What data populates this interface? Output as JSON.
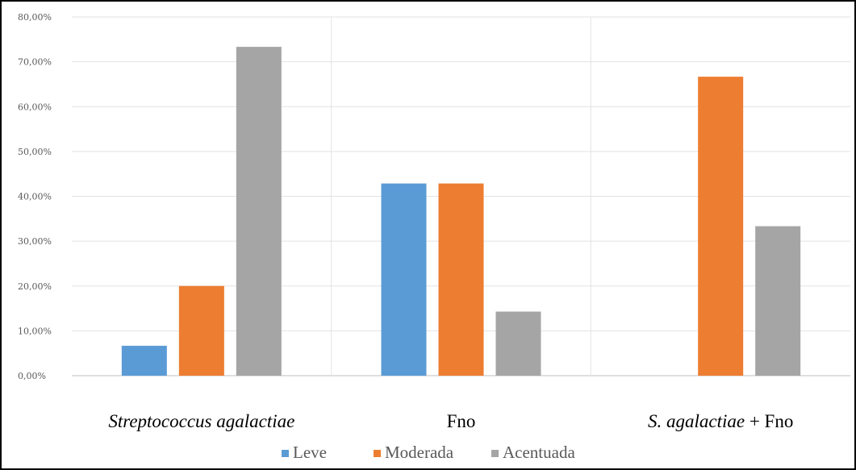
{
  "chart_data": {
    "type": "bar",
    "categories": [
      "Streptococcus agalactiae",
      "Fno",
      "S. agalactiae + Fno"
    ],
    "category_labels": [
      [
        {
          "text": "Streptococcus agalactiae",
          "italic": true
        }
      ],
      [
        {
          "text": "Fno",
          "italic": false
        }
      ],
      [
        {
          "text": "S. agalactiae",
          "italic": true
        },
        {
          "text": " + Fno",
          "italic": false
        }
      ]
    ],
    "series": [
      {
        "name": "Leve",
        "color": "#5B9BD5",
        "values": [
          6.67,
          42.86,
          0
        ]
      },
      {
        "name": "Moderada",
        "color": "#ED7D31",
        "values": [
          20.0,
          42.86,
          66.67
        ]
      },
      {
        "name": "Acentuada",
        "color": "#A5A5A5",
        "values": [
          73.33,
          14.29,
          33.33
        ]
      }
    ],
    "ylim": [
      0,
      80
    ],
    "yticks": [
      "0,00%",
      "10,00%",
      "20,00%",
      "30,00%",
      "40,00%",
      "50,00%",
      "60,00%",
      "70,00%",
      "80,00%"
    ],
    "grid": true,
    "legend_position": "bottom",
    "title": "",
    "xlabel": "",
    "ylabel": ""
  }
}
